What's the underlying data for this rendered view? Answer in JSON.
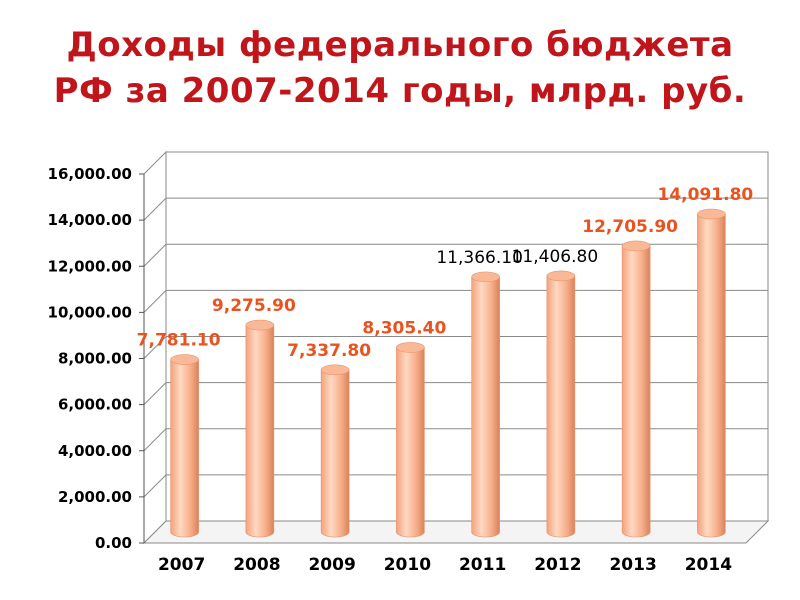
{
  "title_lines": [
    "Доходы федерального бюджета",
    "РФ за 2007-2014 годы, млрд. руб."
  ],
  "colors": {
    "title": "#c0151b",
    "bar_light": "#ffd6bd",
    "bar_mid": "#f7ad88",
    "bar_dark": "#d9825a",
    "label_highlight": "#e8531f",
    "label_plain": "#000000",
    "grid": "#8a8a8a"
  },
  "chart_data": {
    "type": "bar",
    "title": "Доходы федерального бюджета РФ за 2007-2014 годы, млрд. руб.",
    "xlabel": "",
    "ylabel": "",
    "categories": [
      "2007",
      "2008",
      "2009",
      "2010",
      "2011",
      "2012",
      "2013",
      "2014"
    ],
    "values": [
      7781.1,
      9275.9,
      7337.8,
      8305.4,
      11366.1,
      11406.8,
      12705.9,
      14091.8
    ],
    "data_labels": [
      "7,781.10",
      "9,275.90",
      "7,337.80",
      "8,305.40",
      "11,366.10",
      "11,406.80",
      "12,705.90",
      "14,091.80"
    ],
    "label_highlight": [
      true,
      true,
      true,
      true,
      false,
      false,
      true,
      true
    ],
    "ylim": [
      0,
      16000
    ],
    "y_ticks": [
      0,
      2000,
      4000,
      6000,
      8000,
      10000,
      12000,
      14000,
      16000
    ],
    "y_tick_labels": [
      "0.00",
      "2,000.00",
      "4,000.00",
      "6,000.00",
      "8,000.00",
      "10,000.00",
      "12,000.00",
      "14,000.00",
      "16,000.00"
    ],
    "grid": true,
    "legend": "none",
    "style": "3d-cylinder"
  }
}
